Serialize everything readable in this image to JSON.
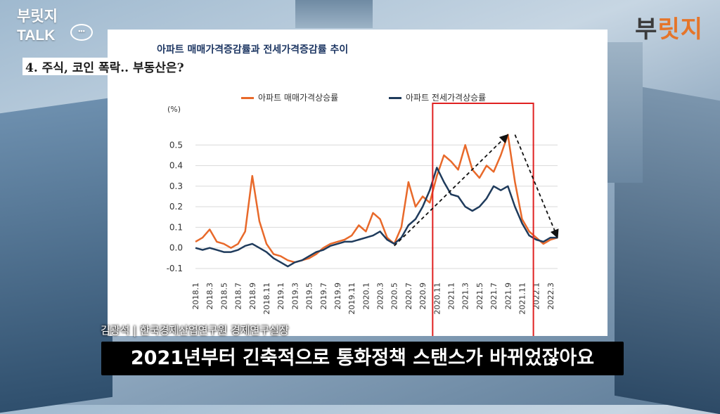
{
  "brand": {
    "line1": "부릿지",
    "line2": "TALK",
    "bubble": "•••"
  },
  "logo": {
    "text_main": "부",
    "text_accent": "릿지"
  },
  "section_label": "4. 주식, 코인 폭락.. 부동산은?",
  "caption": "김광석 | 한국경제산업연구원 경제연구실장",
  "subtitle": "2021년부터 긴축적으로 통화정책 스탠스가 바뀌었잖아요",
  "colors": {
    "sale": "#e8692a",
    "jeonse": "#1f3b5c",
    "highlight": "#e02020",
    "title": "#1f3864"
  },
  "chart_data": {
    "type": "line",
    "title": "아파트 매매가격증감률과 전세가격증감률 추이",
    "ylabel": "(%)",
    "xlabel": "",
    "ylim": [
      -0.1,
      0.6
    ],
    "yticks": [
      "0.5",
      "0.4",
      "0.3",
      "0.2",
      "0.1",
      "0.0",
      "-0.1"
    ],
    "ytick_values": [
      0.5,
      0.4,
      0.3,
      0.2,
      0.1,
      0.0,
      -0.1
    ],
    "xticks": [
      "2018.1",
      "2018.3",
      "2018.5",
      "2018.7",
      "2018.9",
      "2018.11",
      "2019.1",
      "2019.3",
      "2019.5",
      "2019.7",
      "2019.9",
      "2019.11",
      "2020.1",
      "2020.3",
      "2020.5",
      "2020.7",
      "2020.9",
      "2020.11",
      "2021.1",
      "2021.3",
      "2021.5",
      "2021.7",
      "2021.9",
      "2021.11",
      "2022.1",
      "2022.3"
    ],
    "legend_position": "top",
    "grid": "horizontal",
    "series": [
      {
        "name": "아파트 매매가격상승률",
        "color": "#e8692a",
        "points": [
          [
            "2018.1",
            0.03
          ],
          [
            "2018.2",
            0.05
          ],
          [
            "2018.3",
            0.09
          ],
          [
            "2018.4",
            0.03
          ],
          [
            "2018.5",
            0.02
          ],
          [
            "2018.6",
            0.0
          ],
          [
            "2018.7",
            0.02
          ],
          [
            "2018.8",
            0.08
          ],
          [
            "2018.9",
            0.35
          ],
          [
            "2018.10",
            0.13
          ],
          [
            "2018.11",
            0.02
          ],
          [
            "2018.12",
            -0.03
          ],
          [
            "2019.1",
            -0.04
          ],
          [
            "2019.2",
            -0.06
          ],
          [
            "2019.3",
            -0.07
          ],
          [
            "2019.4",
            -0.06
          ],
          [
            "2019.5",
            -0.05
          ],
          [
            "2019.6",
            -0.03
          ],
          [
            "2019.7",
            0.0
          ],
          [
            "2019.8",
            0.02
          ],
          [
            "2019.9",
            0.03
          ],
          [
            "2019.10",
            0.04
          ],
          [
            "2019.11",
            0.06
          ],
          [
            "2019.12",
            0.11
          ],
          [
            "2020.1",
            0.08
          ],
          [
            "2020.2",
            0.17
          ],
          [
            "2020.3",
            0.14
          ],
          [
            "2020.4",
            0.05
          ],
          [
            "2020.5",
            0.02
          ],
          [
            "2020.6",
            0.1
          ],
          [
            "2020.7",
            0.32
          ],
          [
            "2020.8",
            0.2
          ],
          [
            "2020.9",
            0.25
          ],
          [
            "2020.10",
            0.22
          ],
          [
            "2020.11",
            0.35
          ],
          [
            "2020.12",
            0.45
          ],
          [
            "2021.1",
            0.42
          ],
          [
            "2021.2",
            0.38
          ],
          [
            "2021.3",
            0.5
          ],
          [
            "2021.4",
            0.38
          ],
          [
            "2021.5",
            0.34
          ],
          [
            "2021.6",
            0.4
          ],
          [
            "2021.7",
            0.37
          ],
          [
            "2021.8",
            0.45
          ],
          [
            "2021.9",
            0.55
          ],
          [
            "2021.10",
            0.32
          ],
          [
            "2021.11",
            0.14
          ],
          [
            "2021.12",
            0.08
          ],
          [
            "2022.1",
            0.05
          ],
          [
            "2022.2",
            0.02
          ],
          [
            "2022.3",
            0.04
          ],
          [
            "2022.4",
            0.05
          ]
        ]
      },
      {
        "name": "아파트 전세가격상승률",
        "color": "#1f3b5c",
        "points": [
          [
            "2018.1",
            0.0
          ],
          [
            "2018.2",
            -0.01
          ],
          [
            "2018.3",
            0.0
          ],
          [
            "2018.4",
            -0.01
          ],
          [
            "2018.5",
            -0.02
          ],
          [
            "2018.6",
            -0.02
          ],
          [
            "2018.7",
            -0.01
          ],
          [
            "2018.8",
            0.01
          ],
          [
            "2018.9",
            0.02
          ],
          [
            "2018.10",
            0.0
          ],
          [
            "2018.11",
            -0.02
          ],
          [
            "2018.12",
            -0.05
          ],
          [
            "2019.1",
            -0.07
          ],
          [
            "2019.2",
            -0.09
          ],
          [
            "2019.3",
            -0.07
          ],
          [
            "2019.4",
            -0.06
          ],
          [
            "2019.5",
            -0.04
          ],
          [
            "2019.6",
            -0.02
          ],
          [
            "2019.7",
            -0.01
          ],
          [
            "2019.8",
            0.01
          ],
          [
            "2019.9",
            0.02
          ],
          [
            "2019.10",
            0.03
          ],
          [
            "2019.11",
            0.03
          ],
          [
            "2019.12",
            0.04
          ],
          [
            "2020.1",
            0.05
          ],
          [
            "2020.2",
            0.06
          ],
          [
            "2020.3",
            0.08
          ],
          [
            "2020.4",
            0.04
          ],
          [
            "2020.5",
            0.02
          ],
          [
            "2020.6",
            0.05
          ],
          [
            "2020.7",
            0.11
          ],
          [
            "2020.8",
            0.14
          ],
          [
            "2020.9",
            0.2
          ],
          [
            "2020.10",
            0.28
          ],
          [
            "2020.11",
            0.39
          ],
          [
            "2020.12",
            0.32
          ],
          [
            "2021.1",
            0.26
          ],
          [
            "2021.2",
            0.25
          ],
          [
            "2021.3",
            0.2
          ],
          [
            "2021.4",
            0.18
          ],
          [
            "2021.5",
            0.2
          ],
          [
            "2021.6",
            0.24
          ],
          [
            "2021.7",
            0.3
          ],
          [
            "2021.8",
            0.28
          ],
          [
            "2021.9",
            0.3
          ],
          [
            "2021.10",
            0.2
          ],
          [
            "2021.11",
            0.12
          ],
          [
            "2021.12",
            0.06
          ],
          [
            "2022.1",
            0.04
          ],
          [
            "2022.2",
            0.03
          ],
          [
            "2022.3",
            0.05
          ],
          [
            "2022.4",
            0.05
          ]
        ]
      }
    ],
    "annotations": {
      "highlight_box": {
        "x_from": "2020.11",
        "x_to": "2021.12"
      },
      "arrows": [
        {
          "from": [
            "2020.5",
            0.01
          ],
          "to": [
            "2021.9",
            0.55
          ]
        },
        {
          "from": [
            "2021.10",
            0.55
          ],
          "to": [
            "2022.4",
            0.05
          ]
        }
      ]
    }
  }
}
